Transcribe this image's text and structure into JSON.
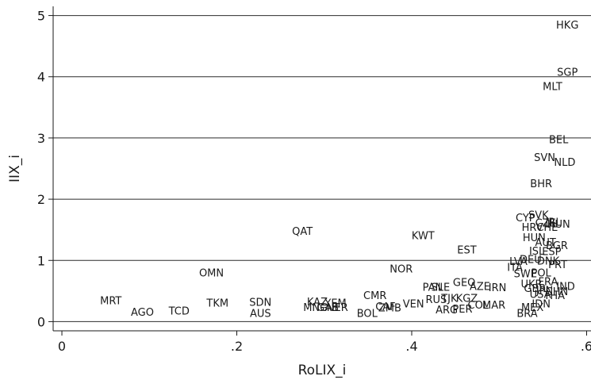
{
  "chart_data": {
    "type": "scatter",
    "marker": "label-only",
    "xlabel": "RoLIX_i",
    "ylabel": "IIX_i",
    "xlim": [
      -0.01,
      0.605
    ],
    "ylim": [
      -0.15,
      5.15
    ],
    "xticks": [
      0,
      0.2,
      0.4,
      0.6
    ],
    "xtick_labels": [
      "0",
      ".2",
      ".4",
      ".6"
    ],
    "yticks": [
      0,
      1,
      2,
      3,
      4,
      5
    ],
    "ytick_labels": [
      "0",
      "1",
      "2",
      "3",
      "4",
      "5"
    ],
    "grid": true,
    "colors": {
      "text": "#1a1a1a",
      "grid": "#2b2b2b",
      "background": "#ffffff"
    },
    "points": [
      {
        "label": "HKG",
        "x": 0.578,
        "y": 4.85
      },
      {
        "label": "SGP",
        "x": 0.578,
        "y": 4.08
      },
      {
        "label": "MLT",
        "x": 0.561,
        "y": 3.85
      },
      {
        "label": "BEL",
        "x": 0.568,
        "y": 2.98
      },
      {
        "label": "SVN",
        "x": 0.552,
        "y": 2.69
      },
      {
        "label": "NLD",
        "x": 0.575,
        "y": 2.61
      },
      {
        "label": "BHR",
        "x": 0.548,
        "y": 2.26
      },
      {
        "label": "SVK",
        "x": 0.545,
        "y": 1.75
      },
      {
        "label": "CYP",
        "x": 0.53,
        "y": 1.7
      },
      {
        "label": "CZE",
        "x": 0.553,
        "y": 1.62
      },
      {
        "label": "IRL",
        "x": 0.562,
        "y": 1.63
      },
      {
        "label": "HUN",
        "x": 0.568,
        "y": 1.6
      },
      {
        "label": "HRV",
        "x": 0.538,
        "y": 1.55
      },
      {
        "label": "CHE",
        "x": 0.555,
        "y": 1.55
      },
      {
        "label": "HUN",
        "x": 0.54,
        "y": 1.38
      },
      {
        "label": "AUT",
        "x": 0.553,
        "y": 1.3
      },
      {
        "label": "BGR",
        "x": 0.566,
        "y": 1.25
      },
      {
        "label": "ISL",
        "x": 0.543,
        "y": 1.16
      },
      {
        "label": "ESP",
        "x": 0.56,
        "y": 1.15
      },
      {
        "label": "LVA",
        "x": 0.522,
        "y": 0.99
      },
      {
        "label": "DEU",
        "x": 0.536,
        "y": 1.02
      },
      {
        "label": "DNK",
        "x": 0.556,
        "y": 1.0
      },
      {
        "label": "PRT",
        "x": 0.567,
        "y": 0.94
      },
      {
        "label": "ITA",
        "x": 0.518,
        "y": 0.89
      },
      {
        "label": "SWE",
        "x": 0.53,
        "y": 0.79
      },
      {
        "label": "POL",
        "x": 0.548,
        "y": 0.8
      },
      {
        "label": "FRA",
        "x": 0.556,
        "y": 0.66
      },
      {
        "label": "UKR",
        "x": 0.537,
        "y": 0.62
      },
      {
        "label": "GBR",
        "x": 0.541,
        "y": 0.55
      },
      {
        "label": "JPN",
        "x": 0.552,
        "y": 0.52
      },
      {
        "label": "IND",
        "x": 0.576,
        "y": 0.58
      },
      {
        "label": "CHN",
        "x": 0.566,
        "y": 0.5
      },
      {
        "label": "USA",
        "x": 0.547,
        "y": 0.45
      },
      {
        "label": "THA",
        "x": 0.563,
        "y": 0.43
      },
      {
        "label": "IDN",
        "x": 0.548,
        "y": 0.3
      },
      {
        "label": "MEX",
        "x": 0.538,
        "y": 0.24
      },
      {
        "label": "BRA",
        "x": 0.532,
        "y": 0.14
      },
      {
        "label": "QAT",
        "x": 0.275,
        "y": 1.48
      },
      {
        "label": "KWT",
        "x": 0.413,
        "y": 1.41
      },
      {
        "label": "EST",
        "x": 0.463,
        "y": 1.18
      },
      {
        "label": "NOR",
        "x": 0.388,
        "y": 0.87
      },
      {
        "label": "OMN",
        "x": 0.171,
        "y": 0.8
      },
      {
        "label": "GEO",
        "x": 0.46,
        "y": 0.65
      },
      {
        "label": "PAN",
        "x": 0.424,
        "y": 0.57
      },
      {
        "label": "SLE",
        "x": 0.433,
        "y": 0.57
      },
      {
        "label": "AZE",
        "x": 0.478,
        "y": 0.58
      },
      {
        "label": "IRN",
        "x": 0.498,
        "y": 0.56
      },
      {
        "label": "CMR",
        "x": 0.358,
        "y": 0.43
      },
      {
        "label": "RUS",
        "x": 0.428,
        "y": 0.37
      },
      {
        "label": "TJK",
        "x": 0.443,
        "y": 0.39
      },
      {
        "label": "KGZ",
        "x": 0.463,
        "y": 0.39
      },
      {
        "label": "VEN",
        "x": 0.402,
        "y": 0.3
      },
      {
        "label": "COL",
        "x": 0.476,
        "y": 0.28
      },
      {
        "label": "MAR",
        "x": 0.494,
        "y": 0.28
      },
      {
        "label": "ARG",
        "x": 0.44,
        "y": 0.2
      },
      {
        "label": "PER",
        "x": 0.458,
        "y": 0.21
      },
      {
        "label": "CAF",
        "x": 0.37,
        "y": 0.25
      },
      {
        "label": "ZMB",
        "x": 0.375,
        "y": 0.23
      },
      {
        "label": "BOL",
        "x": 0.349,
        "y": 0.14
      },
      {
        "label": "KAZ",
        "x": 0.292,
        "y": 0.33
      },
      {
        "label": "YEM",
        "x": 0.313,
        "y": 0.31
      },
      {
        "label": "MNG",
        "x": 0.29,
        "y": 0.24
      },
      {
        "label": "GAB",
        "x": 0.304,
        "y": 0.24
      },
      {
        "label": "NER",
        "x": 0.315,
        "y": 0.24
      },
      {
        "label": "SDN",
        "x": 0.227,
        "y": 0.32
      },
      {
        "label": "AUS",
        "x": 0.227,
        "y": 0.14
      },
      {
        "label": "TKM",
        "x": 0.178,
        "y": 0.31
      },
      {
        "label": "MRT",
        "x": 0.056,
        "y": 0.35
      },
      {
        "label": "AGO",
        "x": 0.092,
        "y": 0.16
      },
      {
        "label": "TCD",
        "x": 0.134,
        "y": 0.18
      }
    ]
  }
}
